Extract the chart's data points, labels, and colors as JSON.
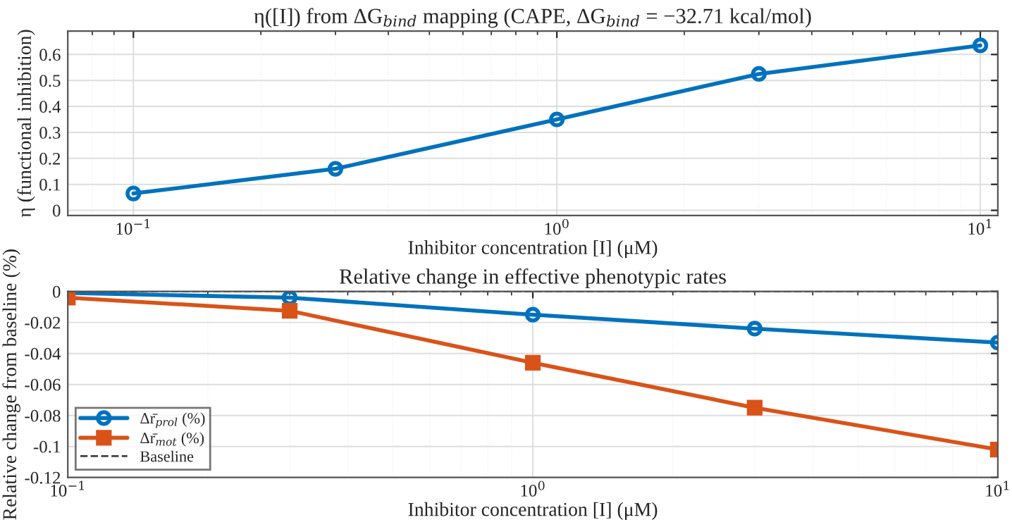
{
  "chart_data": [
    {
      "type": "line",
      "title": "η([I]) from ΔG$_{bind}$ mapping (CAPE, ΔG$_{bind}$ = −32.71 kcal/mol)",
      "xlabel": "Inhibitor concentration [I] (μM)",
      "ylabel": "η (functional inhibition)",
      "log": "x",
      "grid": true,
      "legend": false,
      "x": [
        0.1,
        0.3,
        1,
        3,
        10
      ],
      "series": [
        {
          "color": "#0072bd",
          "marker": "circle",
          "values": [
            0.065,
            0.16,
            0.35,
            0.525,
            0.635
          ]
        }
      ],
      "xlim": [
        0.07,
        11
      ],
      "xticks": [
        {
          "value": 0.1,
          "label": "10$^{−1}$"
        },
        {
          "value": 1,
          "label": "10$^{0}$"
        },
        {
          "value": 10,
          "label": "10$^{1}$"
        }
      ],
      "ylim": [
        -0.02,
        0.69
      ],
      "yticks": [
        0,
        0.1,
        0.2,
        0.3,
        0.4,
        0.5,
        0.6
      ]
    },
    {
      "type": "line",
      "title": "Relative change in effective phenotypic rates",
      "xlabel": "Inhibitor concentration [I] (μM)",
      "ylabel": "Relative change from baseline (%)",
      "log": "x",
      "grid": true,
      "legend": "bottom left",
      "x": [
        0.1,
        0.3,
        1,
        3,
        10
      ],
      "series": [
        {
          "name": "Δr̄$_{prol}$ (%)",
          "color": "#0072bd",
          "marker": "circle",
          "values": [
            -0.001,
            -0.004,
            -0.015,
            -0.024,
            -0.033
          ]
        },
        {
          "name": "Δr̄$_{mot}$ (%)",
          "color": "#d95319",
          "marker": "square",
          "values": [
            -0.004,
            -0.0125,
            -0.046,
            -0.075,
            -0.102
          ]
        }
      ],
      "ref_lines": [
        {
          "axis": "y",
          "value": 0,
          "label": "Baseline",
          "color": "#404040",
          "line_style": "dashed"
        }
      ],
      "xlim": [
        0.1,
        10
      ],
      "xticks": [
        {
          "value": 0.1,
          "label": "10$^{−1}$"
        },
        {
          "value": 1,
          "label": "10$^{0}$"
        },
        {
          "value": 10,
          "label": "10$^{1}$"
        }
      ],
      "ylim": [
        -0.12,
        0
      ],
      "yticks": [
        -0.12,
        -0.1,
        -0.08,
        -0.06,
        -0.04,
        -0.02,
        0
      ]
    }
  ]
}
